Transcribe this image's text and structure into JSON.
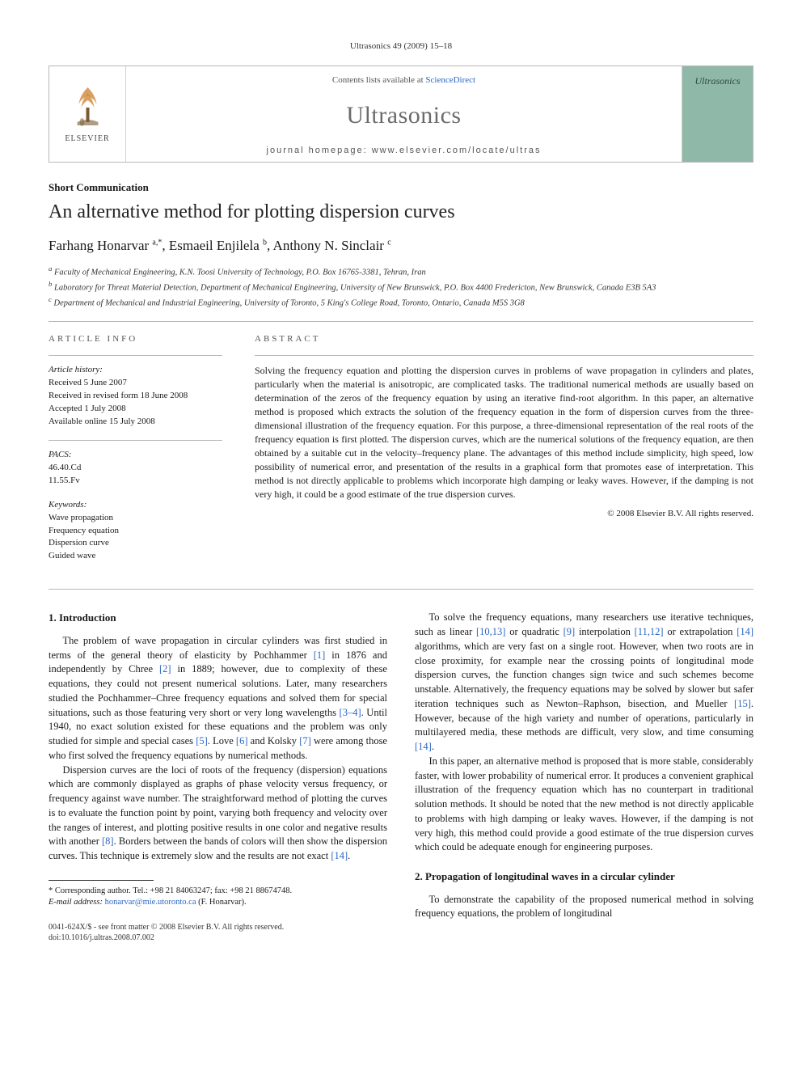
{
  "running_head": "Ultrasonics 49 (2009) 15–18",
  "header": {
    "publisher_name": "ELSEVIER",
    "contents_prefix": "Contents lists available at ",
    "contents_link": "ScienceDirect",
    "journal_name": "Ultrasonics",
    "homepage_label": "journal homepage: www.elsevier.com/locate/ultras",
    "cover_text": "Ultrasonics"
  },
  "article_type": "Short Communication",
  "title": "An alternative method for plotting dispersion curves",
  "authors_html": "Farhang Honarvar <sup>a,*</sup>, Esmaeil Enjilela <sup>b</sup>, Anthony N. Sinclair <sup>c</sup>",
  "affiliations": [
    "a Faculty of Mechanical Engineering, K.N. Toosi University of Technology, P.O. Box 16765-3381, Tehran, Iran",
    "b Laboratory for Threat Material Detection, Department of Mechanical Engineering, University of New Brunswick, P.O. Box 4400 Fredericton, New Brunswick, Canada E3B 5A3",
    "c Department of Mechanical and Industrial Engineering, University of Toronto, 5 King's College Road, Toronto, Ontario, Canada M5S 3G8"
  ],
  "article_info": {
    "heading": "ARTICLE INFO",
    "history_label": "Article history:",
    "history": [
      "Received 5 June 2007",
      "Received in revised form 18 June 2008",
      "Accepted 1 July 2008",
      "Available online 15 July 2008"
    ],
    "pacs_label": "PACS:",
    "pacs": [
      "46.40.Cd",
      "11.55.Fv"
    ],
    "keywords_label": "Keywords:",
    "keywords": [
      "Wave propagation",
      "Frequency equation",
      "Dispersion curve",
      "Guided wave"
    ]
  },
  "abstract": {
    "heading": "ABSTRACT",
    "body": "Solving the frequency equation and plotting the dispersion curves in problems of wave propagation in cylinders and plates, particularly when the material is anisotropic, are complicated tasks. The traditional numerical methods are usually based on determination of the zeros of the frequency equation by using an iterative find-root algorithm. In this paper, an alternative method is proposed which extracts the solution of the frequency equation in the form of dispersion curves from the three-dimensional illustration of the frequency equation. For this purpose, a three-dimensional representation of the real roots of the frequency equation is first plotted. The dispersion curves, which are the numerical solutions of the frequency equation, are then obtained by a suitable cut in the velocity–frequency plane. The advantages of this method include simplicity, high speed, low possibility of numerical error, and presentation of the results in a graphical form that promotes ease of interpretation. This method is not directly applicable to problems which incorporate high damping or leaky waves. However, if the damping is not very high, it could be a good estimate of the true dispersion curves.",
    "copyright": "© 2008 Elsevier B.V. All rights reserved."
  },
  "sections": {
    "s1": {
      "heading": "1. Introduction",
      "p1": "The problem of wave propagation in circular cylinders was first studied in terms of the general theory of elasticity by Pochhammer [1] in 1876 and independently by Chree [2] in 1889; however, due to complexity of these equations, they could not present numerical solutions. Later, many researchers studied the Pochhammer–Chree frequency equations and solved them for special situations, such as those featuring very short or very long wavelengths [3–4]. Until 1940, no exact solution existed for these equations and the problem was only studied for simple and special cases [5]. Love [6] and Kolsky [7] were among those who first solved the frequency equations by numerical methods.",
      "p2": "Dispersion curves are the loci of roots of the frequency (dispersion) equations which are commonly displayed as graphs of phase velocity versus frequency, or frequency against wave number. The straightforward method of plotting the curves is to evaluate the function point by point, varying both frequency and velocity over the ranges of interest, and plotting positive results in one color and negative results with another [8]. Borders between the bands of colors will then show the dispersion curves. This technique is extremely slow and the results are not exact [14].",
      "p3": "To solve the frequency equations, many researchers use iterative techniques, such as linear [10,13] or quadratic [9] interpolation [11,12] or extrapolation [14] algorithms, which are very fast on a single root. However, when two roots are in close proximity, for example near the crossing points of longitudinal mode dispersion curves, the function changes sign twice and such schemes become unstable. Alternatively, the frequency equations may be solved by slower but safer iteration techniques such as Newton–Raphson, bisection, and Mueller [15]. However, because of the high variety and number of operations, particularly in multilayered media, these methods are difficult, very slow, and time consuming [14].",
      "p4": "In this paper, an alternative method is proposed that is more stable, considerably faster, with lower probability of numerical error. It produces a convenient graphical illustration of the frequency equation which has no counterpart in traditional solution methods. It should be noted that the new method is not directly applicable to problems with high damping or leaky waves. However, if the damping is not very high, this method could provide a good estimate of the true dispersion curves which could be adequate enough for engineering purposes."
    },
    "s2": {
      "heading": "2. Propagation of longitudinal waves in a circular cylinder",
      "p1": "To demonstrate the capability of the proposed numerical method in solving frequency equations, the problem of longitudinal"
    }
  },
  "footnote": {
    "corr_label": "* Corresponding author. Tel.: +98 21 84063247; fax: +98 21 88674748.",
    "email_label": "E-mail address:",
    "email": "honarvar@mie.utoronto.ca",
    "email_of": "(F. Honarvar)."
  },
  "doi": {
    "line1": "0041-624X/$ - see front matter © 2008 Elsevier B.V. All rights reserved.",
    "line2": "doi:10.1016/j.ultras.2008.07.002"
  },
  "refs": {
    "r1": "[1]",
    "r2": "[2]",
    "r34": "[3–4]",
    "r5": "[5]",
    "r6": "[6]",
    "r7": "[7]",
    "r8": "[8]",
    "r14": "[14]",
    "r1013": "[10,13]",
    "r9": "[9]",
    "r1112": "[11,12]",
    "r15": "[15]"
  },
  "colors": {
    "border": "#b8b8b8",
    "link": "#2b66c4",
    "journal_grey": "#6b6b6b",
    "cover_bg": "#8fb8a8"
  }
}
